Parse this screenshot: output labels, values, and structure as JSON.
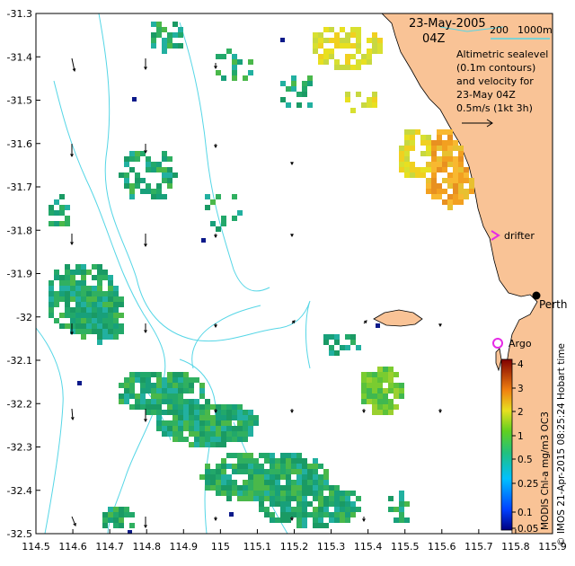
{
  "axes": {
    "x_ticks": [
      "114.5",
      "114.6",
      "114.7",
      "114.8",
      "114.9",
      "115",
      "115.1",
      "115.2",
      "115.3",
      "115.4",
      "115.5",
      "115.6",
      "115.7",
      "115.8",
      "115.9"
    ],
    "y_ticks": [
      "-31.3",
      "-31.4",
      "-31.5",
      "-31.6",
      "-31.7",
      "-31.8",
      "-31.9",
      "-32",
      "-32.1",
      "-32.2",
      "-32.3",
      "-32.4",
      "-32.5"
    ],
    "lon_range": [
      114.5,
      115.9
    ],
    "lat_range": [
      -32.5,
      -31.3
    ]
  },
  "title": {
    "date": "23-May-2005",
    "time": "04Z"
  },
  "scale_bar": {
    "label_200": "200",
    "label_1000": "1000m"
  },
  "legend_text": {
    "line1": "Altimetric sealevel",
    "line2": "(0.1m contours)",
    "line3": "and velocity for",
    "line4": "23-May 04Z",
    "line5": "0.5m/s (1kt 3h)"
  },
  "markers": {
    "drifter_label": "drifter",
    "argo_label": "Argo",
    "city_label": "Perth"
  },
  "colorbar": {
    "tick_labels": [
      "4",
      "3",
      "2",
      "1",
      "0.5",
      "0.25",
      "0.1",
      "0.05"
    ],
    "title": "MODIS Chl-a mg/m3 OC3"
  },
  "credit": "© IMOS 21-Apr-2015 08:25:24 Hobart time",
  "colors": {
    "land": "#f9c396",
    "contour": "#55d6e6",
    "chl_low": "#1a9a64",
    "chl_mid": "#5cc23a",
    "chl_high": "#f2a020",
    "drifter": "#e62ae6"
  }
}
